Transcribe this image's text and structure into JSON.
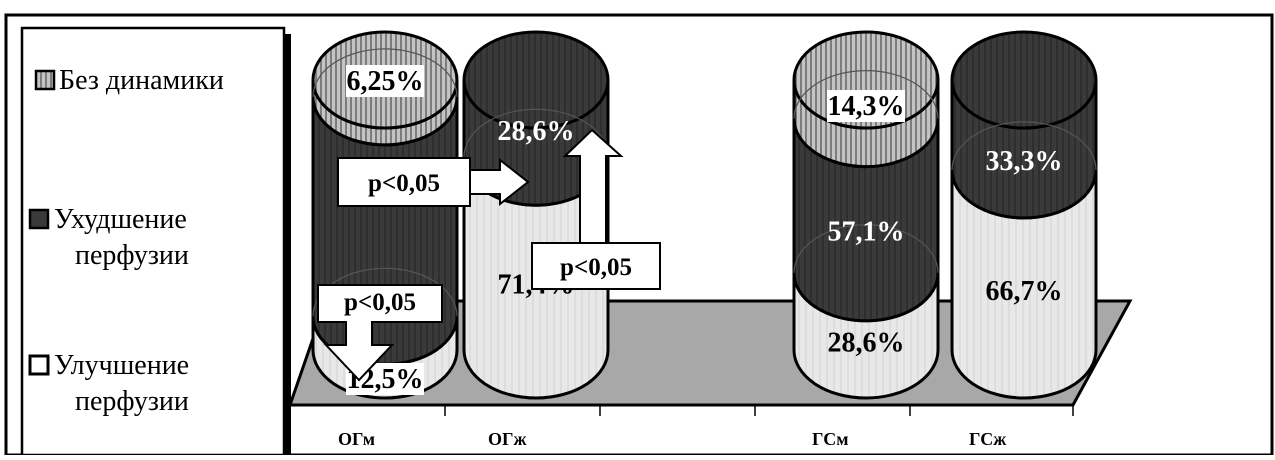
{
  "chart_data": {
    "type": "bar",
    "subtype": "stacked-percent-cylinder-3d",
    "categories": [
      "ОГм",
      "ОГж",
      "ГСм",
      "ГСж"
    ],
    "series": [
      {
        "name": "Улучшение перфузии",
        "values": [
          12.5,
          71.4,
          28.6,
          66.7
        ],
        "labels": [
          "12,5%",
          "71,4%",
          "28,6%",
          "66,7%"
        ],
        "color": "#e6e6e6"
      },
      {
        "name": "Ухудшение перфузии",
        "values": [
          81.25,
          28.6,
          57.1,
          33.3
        ],
        "labels": [
          "",
          "28,6%",
          "57,1%",
          "33,3%"
        ],
        "color": "#3a3a3a"
      },
      {
        "name": "Без динамики",
        "values": [
          6.25,
          0,
          14.3,
          0
        ],
        "labels": [
          "6,25%",
          "",
          "14,3%",
          ""
        ],
        "color": "#bdbdbd"
      }
    ],
    "ylim": [
      0,
      100
    ],
    "legend": {
      "position": "left",
      "items": [
        {
          "label": "Без динамики",
          "icon": "vertical-hatched-square-icon"
        },
        {
          "label": "Ухудшение перфузии",
          "icon": "dark-square-icon"
        },
        {
          "label": "Улучшение перфузии",
          "icon": "light-square-icon"
        }
      ]
    },
    "annotations": [
      {
        "text": "p<0,05",
        "arrow": "right",
        "note": "between ОГм and ОГж"
      },
      {
        "text": "p<0,05",
        "arrow": "up",
        "note": "ОГж"
      },
      {
        "text": "p<0,05",
        "arrow": "down",
        "note": "ОГм"
      }
    ]
  }
}
